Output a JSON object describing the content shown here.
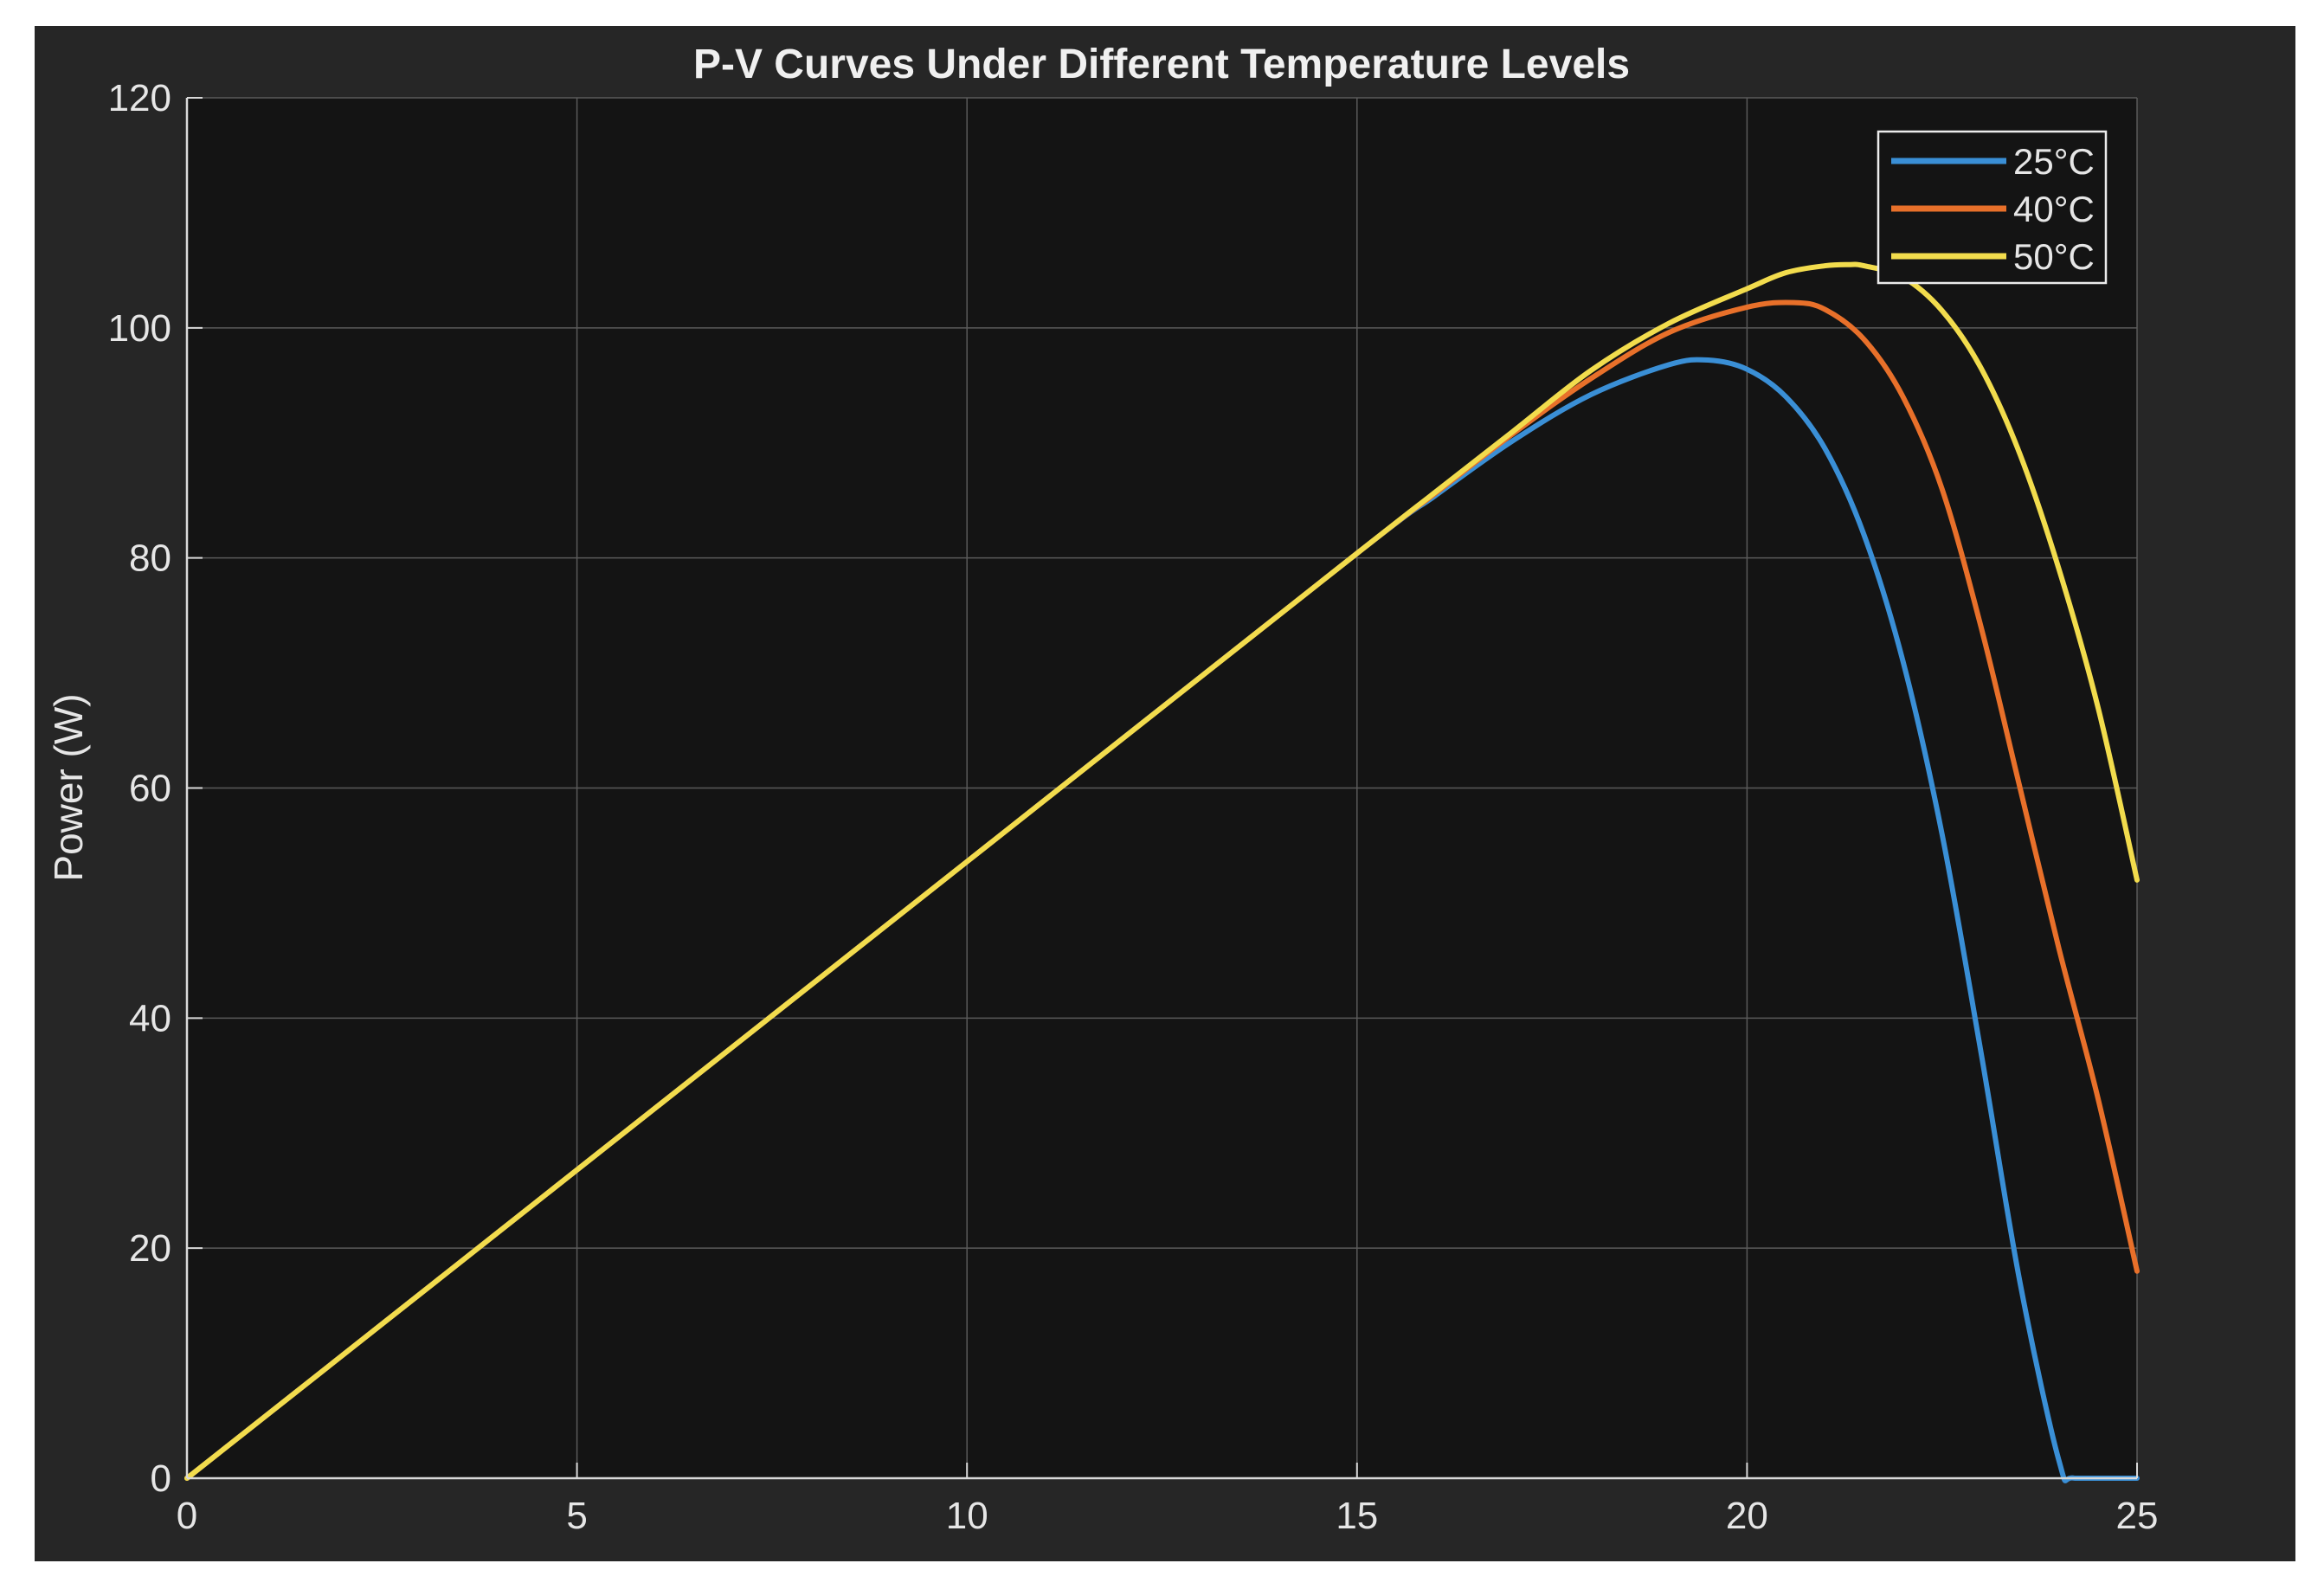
{
  "chart_data": {
    "type": "line",
    "title": "P-V Curves Under Different Temperature Levels",
    "xlabel": "",
    "ylabel": "Power (W)",
    "xlim": [
      0,
      25
    ],
    "ylim": [
      0,
      120
    ],
    "xticks": [
      0,
      5,
      10,
      15,
      20,
      25
    ],
    "yticks": [
      0,
      20,
      40,
      60,
      80,
      100,
      120
    ],
    "grid": true,
    "legend_position": "top-right",
    "colors": {
      "figure_background": "#262626",
      "axes_background": "#141414",
      "grid": "#5a5a5a",
      "axis": "#d9d9d9",
      "text": "#e6e6e6"
    },
    "series": [
      {
        "name": "25°C",
        "color": "#3a8fd6",
        "x": [
          0,
          5,
          10,
          15,
          16,
          17,
          18,
          19,
          19.5,
          20,
          20.5,
          21,
          21.5,
          22,
          22.5,
          23,
          23.5,
          24,
          24.2,
          25
        ],
        "y": [
          0,
          26.8,
          53.6,
          80.4,
          85.4,
          90.2,
          94.2,
          96.8,
          97.2,
          96.4,
          94,
          89.5,
          82,
          71,
          56,
          37,
          17,
          1.5,
          0,
          0
        ]
      },
      {
        "name": "40°C",
        "color": "#e8702a",
        "x": [
          0,
          5,
          10,
          15,
          16,
          17,
          18,
          19,
          20,
          20.6,
          21,
          21.5,
          22,
          22.5,
          23,
          23.5,
          24,
          24.5,
          25
        ],
        "y": [
          0,
          26.8,
          53.6,
          80.4,
          85.6,
          90.8,
          95.6,
          99.6,
          101.8,
          102.2,
          101.6,
          99,
          94,
          86,
          74,
          60,
          46,
          33,
          18
        ]
      },
      {
        "name": "50°C",
        "color": "#f2dc4d",
        "x": [
          0,
          5,
          10,
          15,
          16,
          17,
          18,
          19,
          20,
          20.5,
          21,
          21.3,
          21.5,
          22,
          22.5,
          23,
          23.5,
          24,
          24.5,
          25
        ],
        "y": [
          0,
          26.8,
          53.6,
          80.4,
          85.7,
          91,
          96.3,
          100.4,
          103.4,
          104.8,
          105.4,
          105.5,
          105.4,
          104.4,
          101.5,
          96.5,
          89,
          79,
          67,
          52
        ]
      }
    ]
  }
}
